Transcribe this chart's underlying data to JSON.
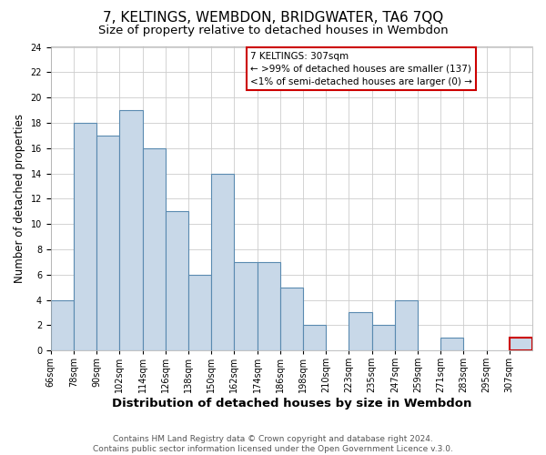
{
  "title": "7, KELTINGS, WEMBDON, BRIDGWATER, TA6 7QQ",
  "subtitle": "Size of property relative to detached houses in Wembdon",
  "xlabel": "Distribution of detached houses by size in Wembdon",
  "ylabel": "Number of detached properties",
  "footer_lines": [
    "Contains HM Land Registry data © Crown copyright and database right 2024.",
    "Contains public sector information licensed under the Open Government Licence v.3.0."
  ],
  "bin_labels": [
    "66sqm",
    "78sqm",
    "90sqm",
    "102sqm",
    "114sqm",
    "126sqm",
    "138sqm",
    "150sqm",
    "162sqm",
    "174sqm",
    "186sqm",
    "198sqm",
    "210sqm",
    "223sqm",
    "235sqm",
    "247sqm",
    "259sqm",
    "271sqm",
    "283sqm",
    "295sqm",
    "307sqm"
  ],
  "bar_values": [
    4,
    18,
    17,
    19,
    16,
    11,
    6,
    14,
    7,
    7,
    5,
    2,
    0,
    3,
    2,
    4,
    0,
    1,
    0,
    0,
    1
  ],
  "bar_color": "#c8d8e8",
  "bar_edge_color": "#5a8ab0",
  "highlight_edge_color": "#cc0000",
  "highlight_index": 20,
  "ylim": [
    0,
    24
  ],
  "yticks": [
    0,
    2,
    4,
    6,
    8,
    10,
    12,
    14,
    16,
    18,
    20,
    22,
    24
  ],
  "legend_title": "7 KELTINGS: 307sqm",
  "legend_line1": "← >99% of detached houses are smaller (137)",
  "legend_line2": "<1% of semi-detached houses are larger (0) →",
  "legend_edge_color": "#cc0000",
  "title_fontsize": 11,
  "subtitle_fontsize": 9.5,
  "xlabel_fontsize": 9.5,
  "ylabel_fontsize": 8.5,
  "tick_fontsize": 7,
  "footer_fontsize": 6.5,
  "legend_fontsize": 7.5
}
